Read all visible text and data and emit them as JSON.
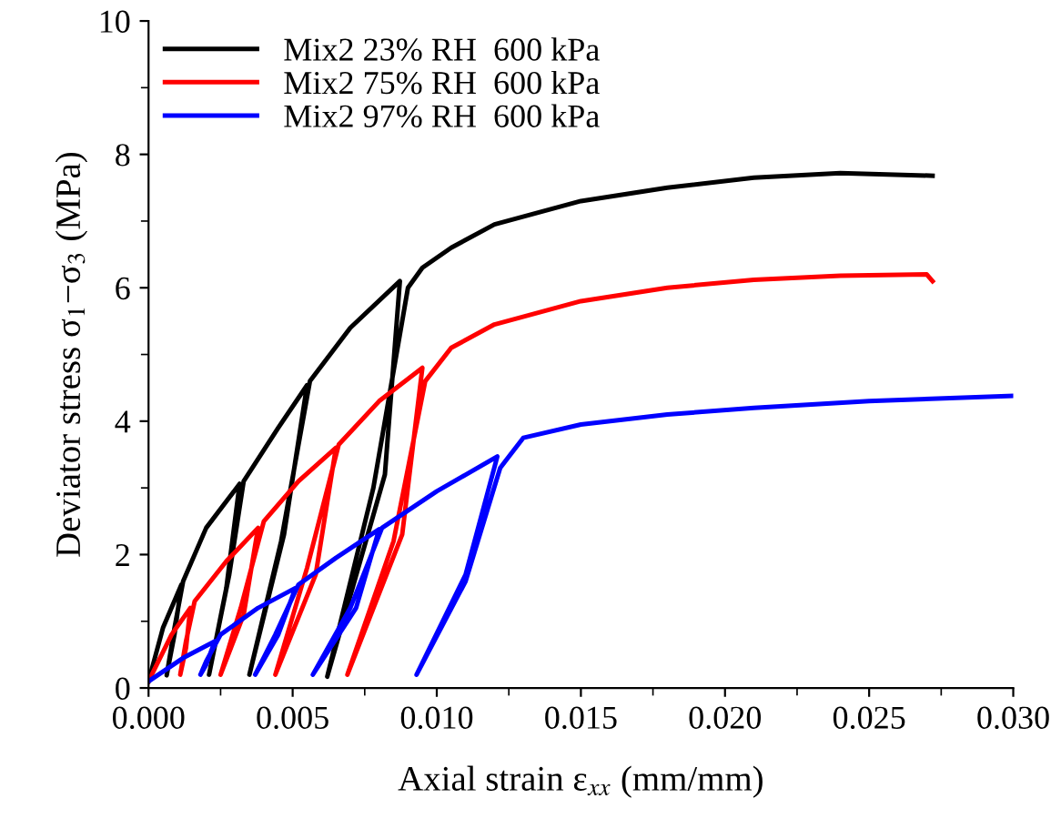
{
  "chart_data": {
    "type": "line",
    "xlabel": "Axial strain ε$_{xx}$ (mm/mm)",
    "ylabel": "Deviator stress σ$_{1}$−σ$_{3}$ (MPa)",
    "xlim": [
      0,
      0.03
    ],
    "ylim": [
      0,
      10
    ],
    "xticks": [
      {
        "value": 0,
        "label": "0.000"
      },
      {
        "value": 0.005,
        "label": "0.005"
      },
      {
        "value": 0.01,
        "label": "0.010"
      },
      {
        "value": 0.015,
        "label": "0.015"
      },
      {
        "value": 0.02,
        "label": "0.020"
      },
      {
        "value": 0.025,
        "label": "0.025"
      },
      {
        "value": 0.03,
        "label": "0.030"
      }
    ],
    "yticks": [
      0,
      2,
      4,
      6,
      8,
      10
    ],
    "grid": false,
    "legend": "top left",
    "marker": "none",
    "line_style": "solid",
    "series": [
      {
        "name": "Mix2 23% RH  600 kPa",
        "color": "#000000",
        "x": [
          0,
          0.0005,
          0.00114,
          0.0009,
          0.00063,
          0.0009,
          0.0012,
          0.002,
          0.00316,
          0.0027,
          0.0021,
          0.0028,
          0.0033,
          0.0045,
          0.0055,
          0.0047,
          0.0035,
          0.0046,
          0.0056,
          0.007,
          0.00872,
          0.0082,
          0.0062,
          0.0078,
          0.009,
          0.0095,
          0.0105,
          0.012,
          0.015,
          0.018,
          0.021,
          0.024,
          0.0272
        ],
        "values": [
          0.1,
          0.9,
          1.55,
          0.8,
          0.19,
          0.9,
          1.6,
          2.4,
          3.06,
          1.5,
          0.2,
          1.7,
          3.1,
          3.9,
          4.54,
          2.3,
          0.2,
          2.2,
          4.6,
          5.4,
          6.1,
          3.2,
          0.17,
          3.0,
          6.0,
          6.3,
          6.6,
          6.95,
          7.3,
          7.5,
          7.65,
          7.72,
          7.68
        ]
      },
      {
        "name": "Mix2 75% RH  600 kPa",
        "color": "#ff0000",
        "x": [
          0,
          0.0008,
          0.00145,
          0.0013,
          0.0011,
          0.0013,
          0.0016,
          0.0027,
          0.0038,
          0.0033,
          0.0025,
          0.0032,
          0.004,
          0.0052,
          0.0065,
          0.0058,
          0.0044,
          0.0055,
          0.0066,
          0.008,
          0.0095,
          0.0088,
          0.0069,
          0.0085,
          0.0096,
          0.0105,
          0.012,
          0.015,
          0.018,
          0.021,
          0.024,
          0.027,
          0.0272
        ],
        "values": [
          0.1,
          0.8,
          1.2,
          0.6,
          0.2,
          0.7,
          1.3,
          1.9,
          2.4,
          1.1,
          0.2,
          1.2,
          2.5,
          3.1,
          3.6,
          1.7,
          0.2,
          1.8,
          3.65,
          4.3,
          4.8,
          2.3,
          0.2,
          2.2,
          4.6,
          5.1,
          5.45,
          5.8,
          6.0,
          6.12,
          6.18,
          6.2,
          6.1
        ]
      },
      {
        "name": "Mix2 97% RH  600 kPa",
        "color": "#0000ff",
        "x": [
          0,
          0.0012,
          0.0023,
          0.002,
          0.0018,
          0.002,
          0.0025,
          0.0038,
          0.0051,
          0.0045,
          0.0037,
          0.0044,
          0.0052,
          0.0065,
          0.008,
          0.0072,
          0.0057,
          0.007,
          0.0081,
          0.01,
          0.0121,
          0.011,
          0.0093,
          0.011,
          0.0122,
          0.013,
          0.015,
          0.018,
          0.021,
          0.025,
          0.03
        ],
        "values": [
          0.1,
          0.45,
          0.7,
          0.35,
          0.2,
          0.4,
          0.8,
          1.2,
          1.5,
          0.8,
          0.2,
          0.8,
          1.55,
          1.95,
          2.38,
          1.2,
          0.2,
          1.2,
          2.4,
          2.95,
          3.47,
          1.7,
          0.2,
          1.6,
          3.3,
          3.75,
          3.95,
          4.1,
          4.2,
          4.3,
          4.38
        ]
      }
    ]
  }
}
